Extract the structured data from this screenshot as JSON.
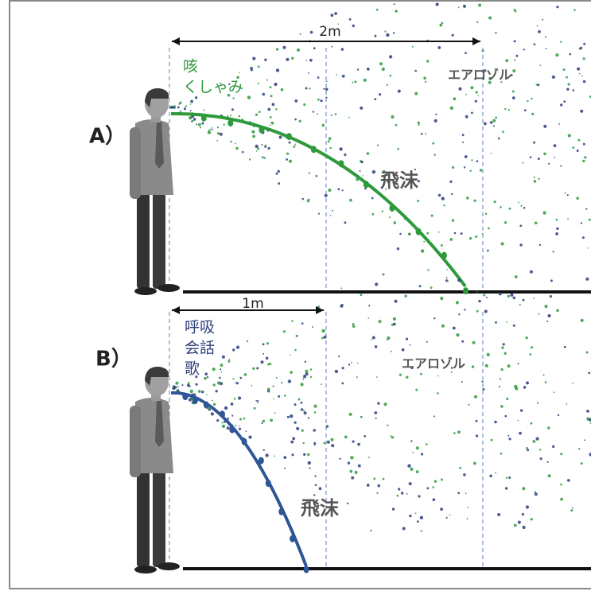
{
  "panels": [
    {
      "label": "A）",
      "distance": "2m",
      "source_lines": [
        "咳",
        "くしゃみ"
      ],
      "aerosol": "エアロゾル",
      "droplet": "飛沫"
    },
    {
      "label": "B）",
      "distance": "1m",
      "source_lines": [
        "呼吸",
        "会話",
        "歌"
      ],
      "aerosol": "エアロゾル",
      "droplet": "飛沫"
    }
  ]
}
